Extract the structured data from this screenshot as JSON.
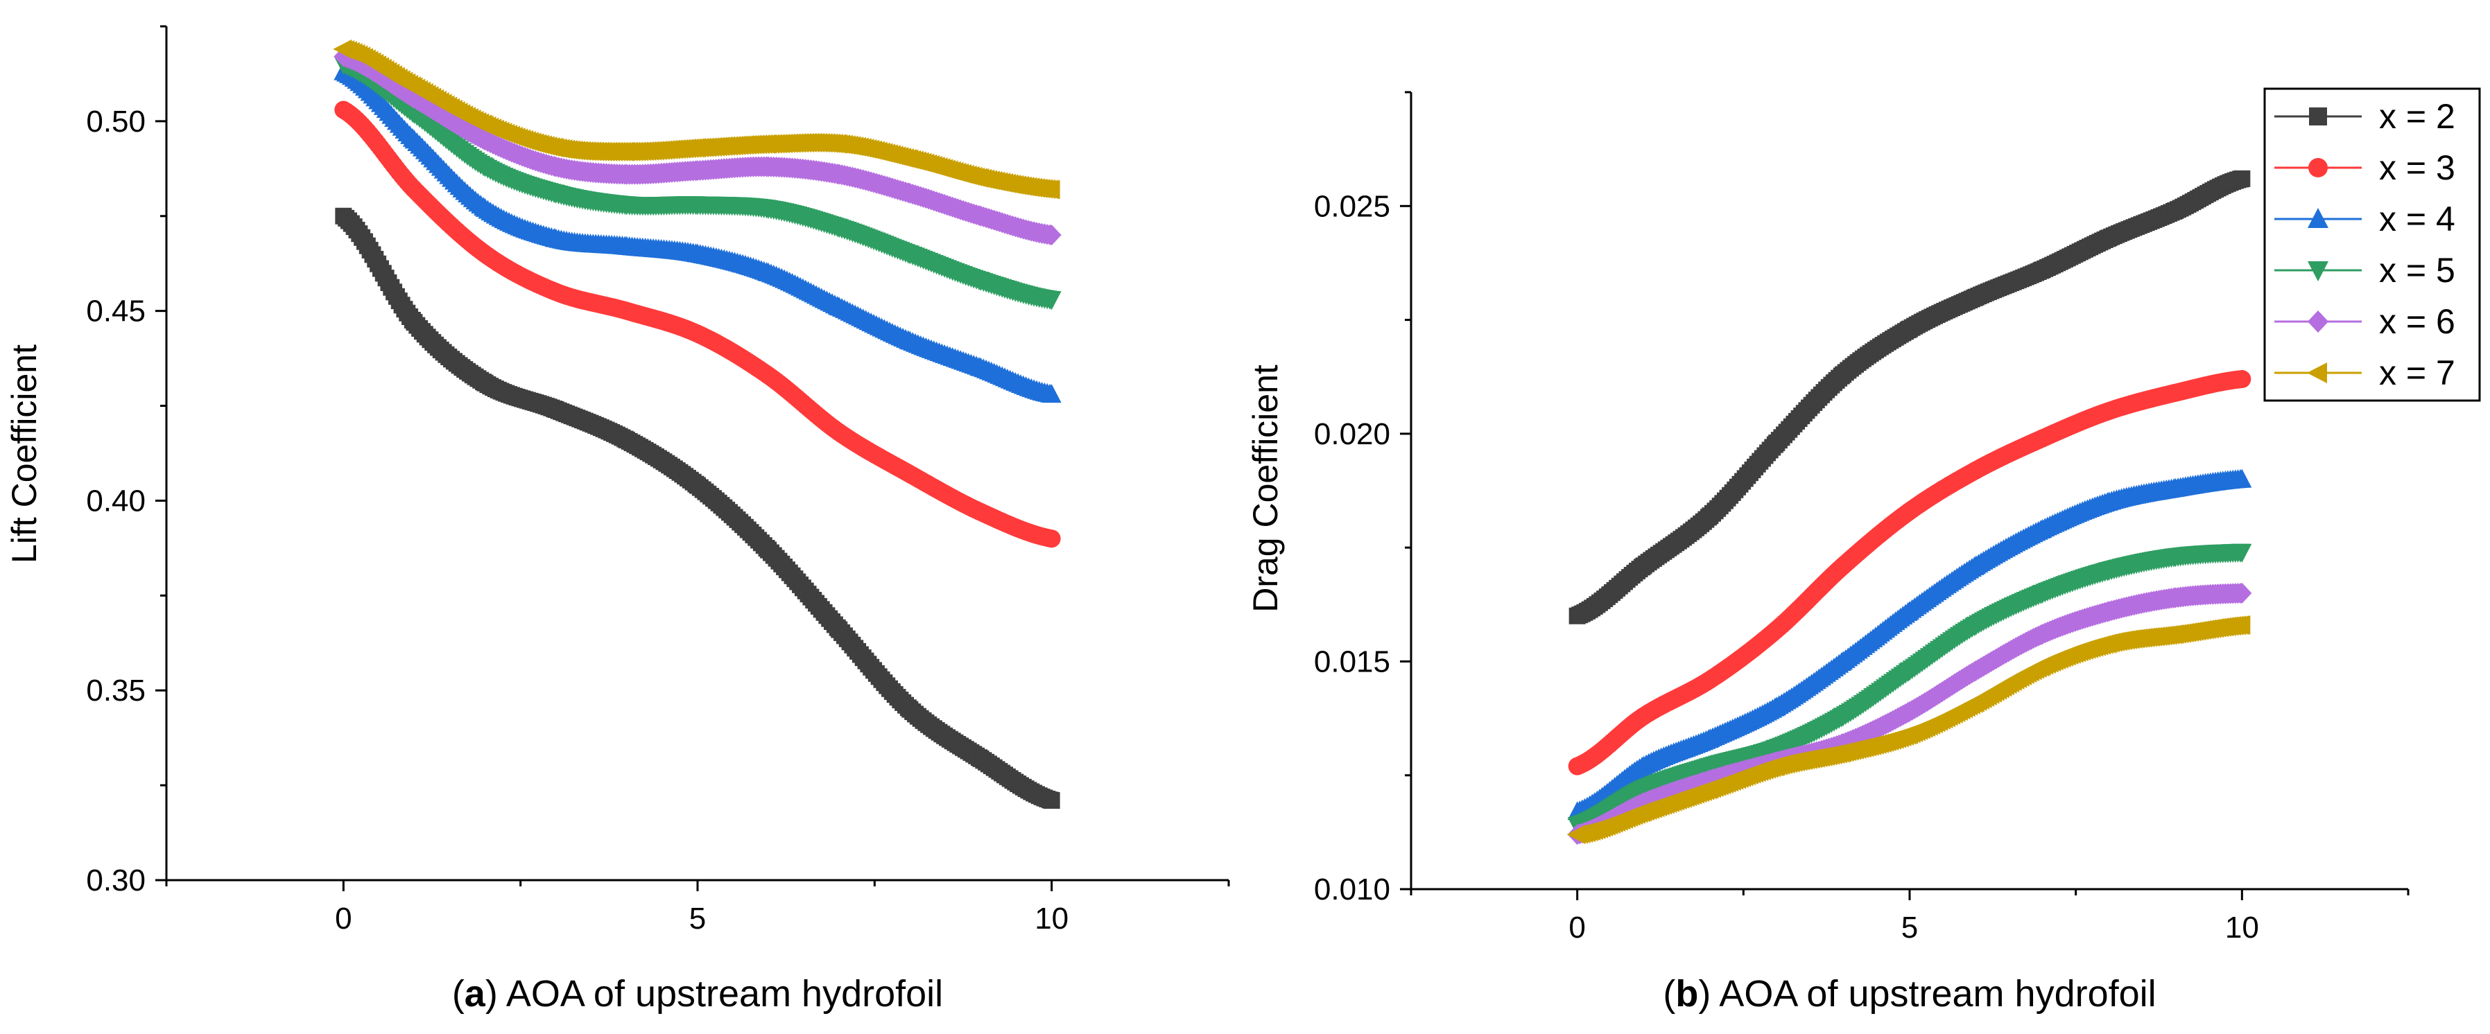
{
  "chart_data": [
    {
      "type": "line",
      "panel_label": "a",
      "xlabel": "AOA of upstream hydrofoil",
      "ylabel": "Lift Coefficient",
      "xlim": [
        -2.5,
        12.5
      ],
      "ylim": [
        0.3,
        0.525
      ],
      "x_ticks": [
        0,
        5,
        10
      ],
      "y_ticks": [
        0.3,
        0.35,
        0.4,
        0.45,
        0.5
      ],
      "y_tick_labels": [
        "0.30",
        "0.35",
        "0.40",
        "0.45",
        "0.50"
      ],
      "grid": false,
      "series": [
        {
          "name": "x = 2",
          "marker": "square",
          "color": "#3f3f3f",
          "x": [
            0,
            1,
            2,
            3,
            4,
            5,
            6,
            7,
            8,
            9,
            10
          ],
          "values": [
            0.475,
            0.447,
            0.431,
            0.424,
            0.416,
            0.404,
            0.387,
            0.366,
            0.345,
            0.332,
            0.321
          ]
        },
        {
          "name": "x = 3",
          "marker": "circle",
          "color": "#ff3a3a",
          "x": [
            0,
            1,
            2,
            3,
            4,
            5,
            6,
            7,
            8,
            9,
            10
          ],
          "values": [
            0.503,
            0.482,
            0.465,
            0.455,
            0.45,
            0.444,
            0.433,
            0.418,
            0.407,
            0.397,
            0.39
          ]
        },
        {
          "name": "x = 4",
          "marker": "triangle-up",
          "color": "#1e6fd9",
          "x": [
            0,
            1,
            2,
            3,
            4,
            5,
            6,
            7,
            8,
            9,
            10
          ],
          "values": [
            0.513,
            0.495,
            0.477,
            0.469,
            0.467,
            0.465,
            0.46,
            0.451,
            0.442,
            0.435,
            0.428
          ]
        },
        {
          "name": "x = 5",
          "marker": "triangle-down",
          "color": "#2e9e62",
          "x": [
            0,
            1,
            2,
            3,
            4,
            5,
            6,
            7,
            8,
            9,
            10
          ],
          "values": [
            0.515,
            0.502,
            0.488,
            0.481,
            0.478,
            0.478,
            0.477,
            0.472,
            0.465,
            0.458,
            0.453
          ]
        },
        {
          "name": "x = 6",
          "marker": "diamond",
          "color": "#b56ee0",
          "x": [
            0,
            1,
            2,
            3,
            4,
            5,
            6,
            7,
            8,
            9,
            10
          ],
          "values": [
            0.517,
            0.506,
            0.495,
            0.488,
            0.486,
            0.487,
            0.488,
            0.486,
            0.481,
            0.475,
            0.47
          ]
        },
        {
          "name": "x = 7",
          "marker": "triangle-left",
          "color": "#c9a000",
          "x": [
            0,
            1,
            2,
            3,
            4,
            5,
            6,
            7,
            8,
            9,
            10
          ],
          "values": [
            0.519,
            0.509,
            0.499,
            0.493,
            0.492,
            0.493,
            0.494,
            0.494,
            0.49,
            0.485,
            0.482
          ]
        }
      ]
    },
    {
      "type": "line",
      "panel_label": "b",
      "xlabel": "AOA of upstream hydrofoil",
      "ylabel": "Drag Coefficient",
      "xlim": [
        -2.5,
        12.5
      ],
      "ylim": [
        0.01,
        0.0275
      ],
      "x_ticks": [
        0,
        5,
        10
      ],
      "y_ticks": [
        0.01,
        0.015,
        0.02,
        0.025
      ],
      "y_tick_labels": [
        "0.010",
        "0.015",
        "0.020",
        "0.025"
      ],
      "grid": false,
      "legend_position": "top-right",
      "series": [
        {
          "name": "x = 2",
          "marker": "square",
          "color": "#3f3f3f",
          "x": [
            0,
            1,
            2,
            3,
            4,
            5,
            6,
            7,
            8,
            9,
            10
          ],
          "values": [
            0.016,
            0.0171,
            0.0182,
            0.0198,
            0.0213,
            0.0223,
            0.023,
            0.0236,
            0.0243,
            0.0249,
            0.0256
          ]
        },
        {
          "name": "x = 3",
          "marker": "circle",
          "color": "#ff3a3a",
          "x": [
            0,
            1,
            2,
            3,
            4,
            5,
            6,
            7,
            8,
            9,
            10
          ],
          "values": [
            0.0127,
            0.0138,
            0.0146,
            0.0157,
            0.0171,
            0.0183,
            0.0192,
            0.0199,
            0.0205,
            0.0209,
            0.0212
          ]
        },
        {
          "name": "x = 4",
          "marker": "triangle-up",
          "color": "#1e6fd9",
          "x": [
            0,
            1,
            2,
            3,
            4,
            5,
            6,
            7,
            8,
            9,
            10
          ],
          "values": [
            0.0117,
            0.0127,
            0.0133,
            0.014,
            0.015,
            0.0161,
            0.0171,
            0.0179,
            0.0185,
            0.0188,
            0.019
          ]
        },
        {
          "name": "x = 5",
          "marker": "triangle-down",
          "color": "#2e9e62",
          "x": [
            0,
            1,
            2,
            3,
            4,
            5,
            6,
            7,
            8,
            9,
            10
          ],
          "values": [
            0.0114,
            0.0122,
            0.0127,
            0.0131,
            0.0138,
            0.0148,
            0.0158,
            0.0165,
            0.017,
            0.0173,
            0.0174
          ]
        },
        {
          "name": "x = 6",
          "marker": "diamond",
          "color": "#b56ee0",
          "x": [
            0,
            1,
            2,
            3,
            4,
            5,
            6,
            7,
            8,
            9,
            10
          ],
          "values": [
            0.0112,
            0.0119,
            0.0124,
            0.0128,
            0.0132,
            0.0139,
            0.0148,
            0.0156,
            0.0161,
            0.0164,
            0.0165
          ]
        },
        {
          "name": "x = 7",
          "marker": "triangle-left",
          "color": "#c9a000",
          "x": [
            0,
            1,
            2,
            3,
            4,
            5,
            6,
            7,
            8,
            9,
            10
          ],
          "values": [
            0.0112,
            0.0117,
            0.0122,
            0.0127,
            0.013,
            0.0134,
            0.0141,
            0.0149,
            0.0154,
            0.0156,
            0.0158
          ]
        }
      ]
    }
  ]
}
